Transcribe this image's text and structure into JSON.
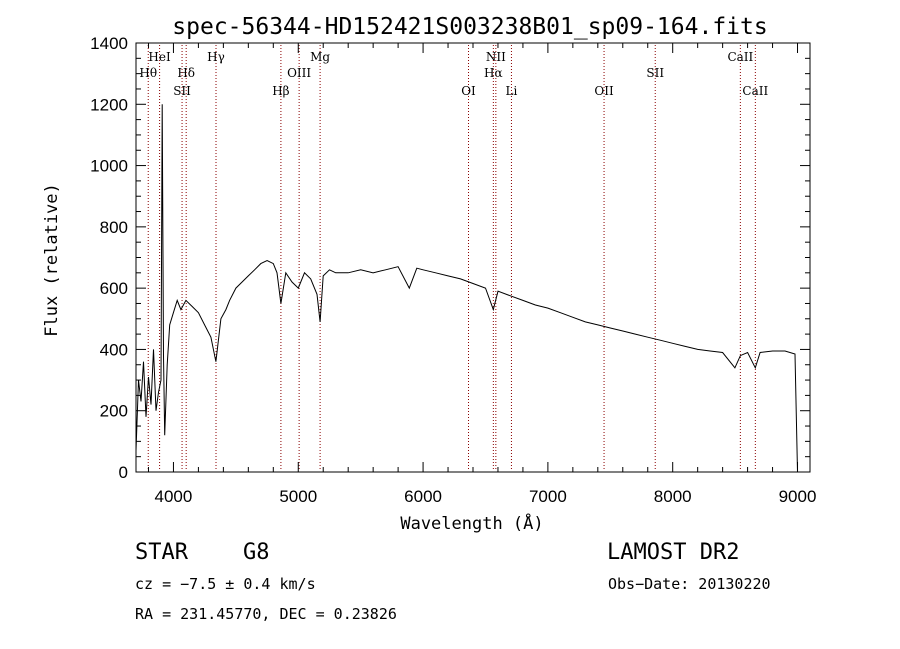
{
  "chart_data": {
    "type": "line",
    "title": "spec-56344-HD152421S003238B01_sp09-164.fits",
    "xlabel": "Wavelength (Å)",
    "ylabel": "Flux (relative)",
    "xlim": [
      3700,
      9100
    ],
    "ylim": [
      0,
      1400
    ],
    "x_ticks": [
      4000,
      5000,
      6000,
      7000,
      8000,
      9000
    ],
    "y_ticks": [
      0,
      200,
      400,
      600,
      800,
      1000,
      1200,
      1400
    ],
    "grid": false,
    "line_color": "#000000",
    "marker_color": "#8b0000",
    "series": [
      {
        "x": [
          3700,
          3720,
          3740,
          3760,
          3780,
          3800,
          3820,
          3840,
          3860,
          3880,
          3900,
          3910,
          3920,
          3930,
          3950,
          3970,
          4000,
          4030,
          4060,
          4100,
          4150,
          4200,
          4250,
          4300,
          4340,
          4380,
          4420,
          4450,
          4500,
          4550,
          4600,
          4650,
          4700,
          4750,
          4800,
          4830,
          4861,
          4900,
          4950,
          5000,
          5050,
          5100,
          5150,
          5175,
          5200,
          5250,
          5300,
          5400,
          5500,
          5600,
          5700,
          5800,
          5890,
          5950,
          6000,
          6100,
          6200,
          6300,
          6400,
          6500,
          6563,
          6600,
          6700,
          6800,
          6900,
          7000,
          7100,
          7200,
          7300,
          7400,
          7500,
          7600,
          7700,
          7800,
          7900,
          8000,
          8100,
          8200,
          8300,
          8400,
          8498,
          8542,
          8600,
          8662,
          8700,
          8800,
          8900,
          8980,
          9000
        ],
        "y": [
          70,
          300,
          230,
          360,
          180,
          310,
          220,
          400,
          200,
          260,
          300,
          1200,
          380,
          120,
          350,
          480,
          520,
          560,
          530,
          560,
          540,
          520,
          480,
          440,
          360,
          500,
          530,
          560,
          600,
          620,
          640,
          660,
          680,
          690,
          680,
          650,
          550,
          650,
          620,
          600,
          650,
          630,
          580,
          490,
          640,
          660,
          650,
          650,
          660,
          650,
          660,
          670,
          600,
          665,
          660,
          650,
          640,
          630,
          615,
          600,
          530,
          590,
          575,
          560,
          545,
          535,
          520,
          505,
          490,
          480,
          470,
          460,
          450,
          440,
          430,
          420,
          410,
          400,
          395,
          390,
          340,
          380,
          390,
          340,
          390,
          395,
          395,
          385,
          0
        ]
      }
    ],
    "line_markers": [
      {
        "label": "HeI",
        "x": 3889,
        "row": 0
      },
      {
        "label": "Hθ",
        "x": 3798,
        "row": 1
      },
      {
        "label": "Hδ",
        "x": 4102,
        "row": 1
      },
      {
        "label": "SII",
        "x": 4069,
        "row": 2
      },
      {
        "label": "Hγ",
        "x": 4341,
        "row": 0
      },
      {
        "label": "Hβ",
        "x": 4861,
        "row": 2
      },
      {
        "label": "OIII",
        "x": 5007,
        "row": 1
      },
      {
        "label": "Mg",
        "x": 5175,
        "row": 0
      },
      {
        "label": "OI",
        "x": 6364,
        "row": 2
      },
      {
        "label": "NII",
        "x": 6583,
        "row": 0
      },
      {
        "label": "Hα",
        "x": 6563,
        "row": 1
      },
      {
        "label": "Li",
        "x": 6708,
        "row": 2
      },
      {
        "label": "OII",
        "x": 7450,
        "row": 2
      },
      {
        "label": "SII",
        "x": 7860,
        "row": 1
      },
      {
        "label": "CaII",
        "x": 8542,
        "row": 0
      },
      {
        "label": "CaII",
        "x": 8662,
        "row": 2
      }
    ]
  },
  "info": {
    "object_class": "STAR",
    "subclass": "G8",
    "survey": "LAMOST DR2",
    "velocity": "cz = −7.5 ± 0.4 km/s",
    "obs_date": "Obs−Date: 20130220",
    "coords": "RA = 231.45770, DEC =    0.23826"
  }
}
